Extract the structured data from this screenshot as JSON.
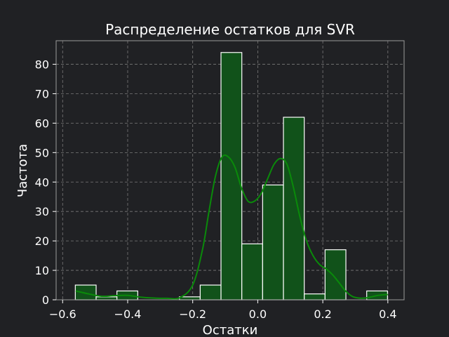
{
  "chart_data": {
    "type": "bar",
    "title": "Распределение остатков для SVR",
    "xlabel": "Остатки",
    "ylabel": "Частота",
    "xlim": [
      -0.62,
      0.45
    ],
    "ylim": [
      0,
      88
    ],
    "xticks": [
      -0.6,
      -0.4,
      -0.2,
      0.0,
      0.2,
      0.4
    ],
    "xtick_labels": [
      "−0.6",
      "−0.4",
      "−0.2",
      "0.0",
      "0.2",
      "0.4"
    ],
    "yticks": [
      0,
      10,
      20,
      30,
      40,
      50,
      60,
      70,
      80
    ],
    "ytick_labels": [
      "0",
      "10",
      "20",
      "30",
      "40",
      "50",
      "60",
      "70",
      "80"
    ],
    "grid": true,
    "bins": [
      {
        "x0": -0.561,
        "x1": -0.497,
        "count": 5
      },
      {
        "x0": -0.497,
        "x1": -0.433,
        "count": 1
      },
      {
        "x0": -0.433,
        "x1": -0.369,
        "count": 3
      },
      {
        "x0": -0.369,
        "x1": -0.305,
        "count": 0
      },
      {
        "x0": -0.305,
        "x1": -0.241,
        "count": 0
      },
      {
        "x0": -0.241,
        "x1": -0.177,
        "count": 1
      },
      {
        "x0": -0.177,
        "x1": -0.113,
        "count": 5
      },
      {
        "x0": -0.113,
        "x1": -0.049,
        "count": 84
      },
      {
        "x0": -0.049,
        "x1": 0.015,
        "count": 19
      },
      {
        "x0": 0.015,
        "x1": 0.079,
        "count": 39
      },
      {
        "x0": 0.079,
        "x1": 0.143,
        "count": 62
      },
      {
        "x0": 0.143,
        "x1": 0.207,
        "count": 2
      },
      {
        "x0": 0.207,
        "x1": 0.271,
        "count": 17
      },
      {
        "x0": 0.271,
        "x1": 0.335,
        "count": 0
      },
      {
        "x0": 0.335,
        "x1": 0.399,
        "count": 3
      }
    ],
    "kde": {
      "x": [
        -0.56,
        -0.52,
        -0.48,
        -0.44,
        -0.4,
        -0.36,
        -0.32,
        -0.28,
        -0.24,
        -0.2,
        -0.17,
        -0.15,
        -0.13,
        -0.11,
        -0.09,
        -0.07,
        -0.05,
        -0.03,
        -0.01,
        0.01,
        0.03,
        0.05,
        0.07,
        0.09,
        0.11,
        0.13,
        0.15,
        0.17,
        0.19,
        0.21,
        0.23,
        0.25,
        0.27,
        0.29,
        0.31,
        0.33,
        0.35,
        0.37,
        0.4
      ],
      "y": [
        3.0,
        2.0,
        1.2,
        1.4,
        1.5,
        0.9,
        0.6,
        0.5,
        0.7,
        5.0,
        17,
        30,
        42,
        48.5,
        48.5,
        45,
        38,
        33.5,
        33.5,
        36,
        41,
        46,
        48,
        46,
        38,
        28,
        20,
        15,
        12,
        10.5,
        8.5,
        5.8,
        3.0,
        1.2,
        0.6,
        0.6,
        1.0,
        1.5,
        1.8
      ]
    },
    "colors": {
      "background": "#202124",
      "bar_fill": "#11521a",
      "bar_stroke": "#ffffff",
      "kde_line": "#0a8a0a",
      "grid": "#7a7a7a",
      "spine": "#9a9a9a",
      "text": "#ffffff"
    }
  }
}
